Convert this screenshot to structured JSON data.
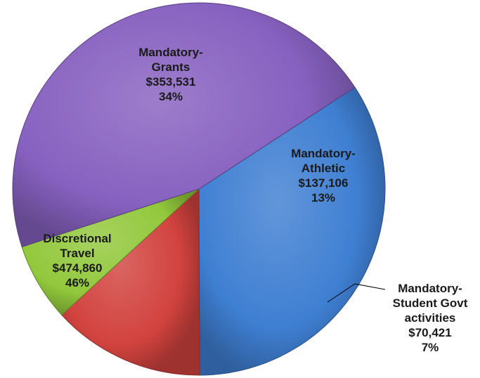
{
  "chart_data": {
    "type": "pie",
    "style": "3d-shaded",
    "legend": "none",
    "slices": [
      {
        "label_lines": [
          "Mandatory-",
          "Grants"
        ],
        "value": 353531,
        "value_text": "$353,531",
        "percent_text": "34%",
        "color": "#3f7fd2"
      },
      {
        "label_lines": [
          "Mandatory-",
          "Athletic"
        ],
        "value": 137106,
        "value_text": "$137,106",
        "percent_text": "13%",
        "color": "#d2433f"
      },
      {
        "label_lines": [
          "Mandatory-",
          "Student Govt",
          "activities"
        ],
        "value": 70421,
        "value_text": "$70,421",
        "percent_text": "7%",
        "color": "#92c83c"
      },
      {
        "label_lines": [
          "Discretional",
          "Travel"
        ],
        "value": 474860,
        "value_text": "$474,860",
        "percent_text": "46%",
        "color": "#8761c0"
      }
    ]
  }
}
